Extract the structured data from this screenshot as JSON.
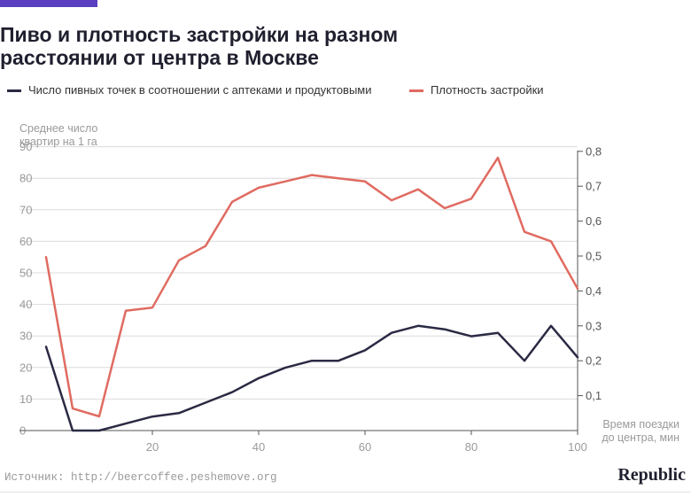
{
  "header": {
    "title_line1": "Пиво и плотность застройки на разном",
    "title_line2": "расстоянии от центра в Москве"
  },
  "colors": {
    "accent": "#5a3fc0",
    "beer": "#2b2a44",
    "density": "#e06b61"
  },
  "chart_data": {
    "type": "line",
    "x": [
      0,
      5,
      10,
      15,
      20,
      25,
      30,
      35,
      40,
      45,
      50,
      55,
      60,
      65,
      70,
      75,
      80,
      85,
      90,
      95,
      100
    ],
    "x_ticks": [
      "20",
      "40",
      "60",
      "80",
      "100"
    ],
    "xlabel_line1": "Время поездки",
    "xlabel_line2": "до центра, мин",
    "xlim": [
      0,
      100
    ],
    "left_axis": {
      "label_line1": "Среднее число",
      "label_line2": "квартир на 1 га",
      "ticks": [
        "0",
        "10",
        "20",
        "30",
        "40",
        "50",
        "60",
        "70",
        "80",
        "90"
      ],
      "ylim": [
        0,
        90
      ]
    },
    "right_axis": {
      "ticks": [
        "0,1",
        "0,2",
        "0,3",
        "0,4",
        "0,5",
        "0,6",
        "0,7",
        "0,8"
      ],
      "ylim": [
        0,
        0.8
      ]
    },
    "grid": true,
    "legend_position": "top-left",
    "series": [
      {
        "name": "Число пивных точек в соотношении с аптеками и продуктовыми",
        "axis": "right",
        "values": [
          0.24,
          0.0,
          0.0,
          0.02,
          0.04,
          0.05,
          0.08,
          0.11,
          0.15,
          0.18,
          0.2,
          0.2,
          0.23,
          0.28,
          0.3,
          0.29,
          0.27,
          0.28,
          0.2,
          0.3,
          0.21
        ]
      },
      {
        "name": "Плотность застройки",
        "axis": "left",
        "values": [
          55,
          7,
          4.5,
          38,
          39,
          54,
          58.5,
          72.5,
          77,
          79,
          81,
          80,
          79,
          73,
          76.5,
          70.5,
          73.5,
          86.5,
          63,
          60,
          45
        ]
      }
    ]
  },
  "footer": {
    "source": "Источник: http://beercoffee.peshemove.org",
    "logo": "Republic"
  }
}
